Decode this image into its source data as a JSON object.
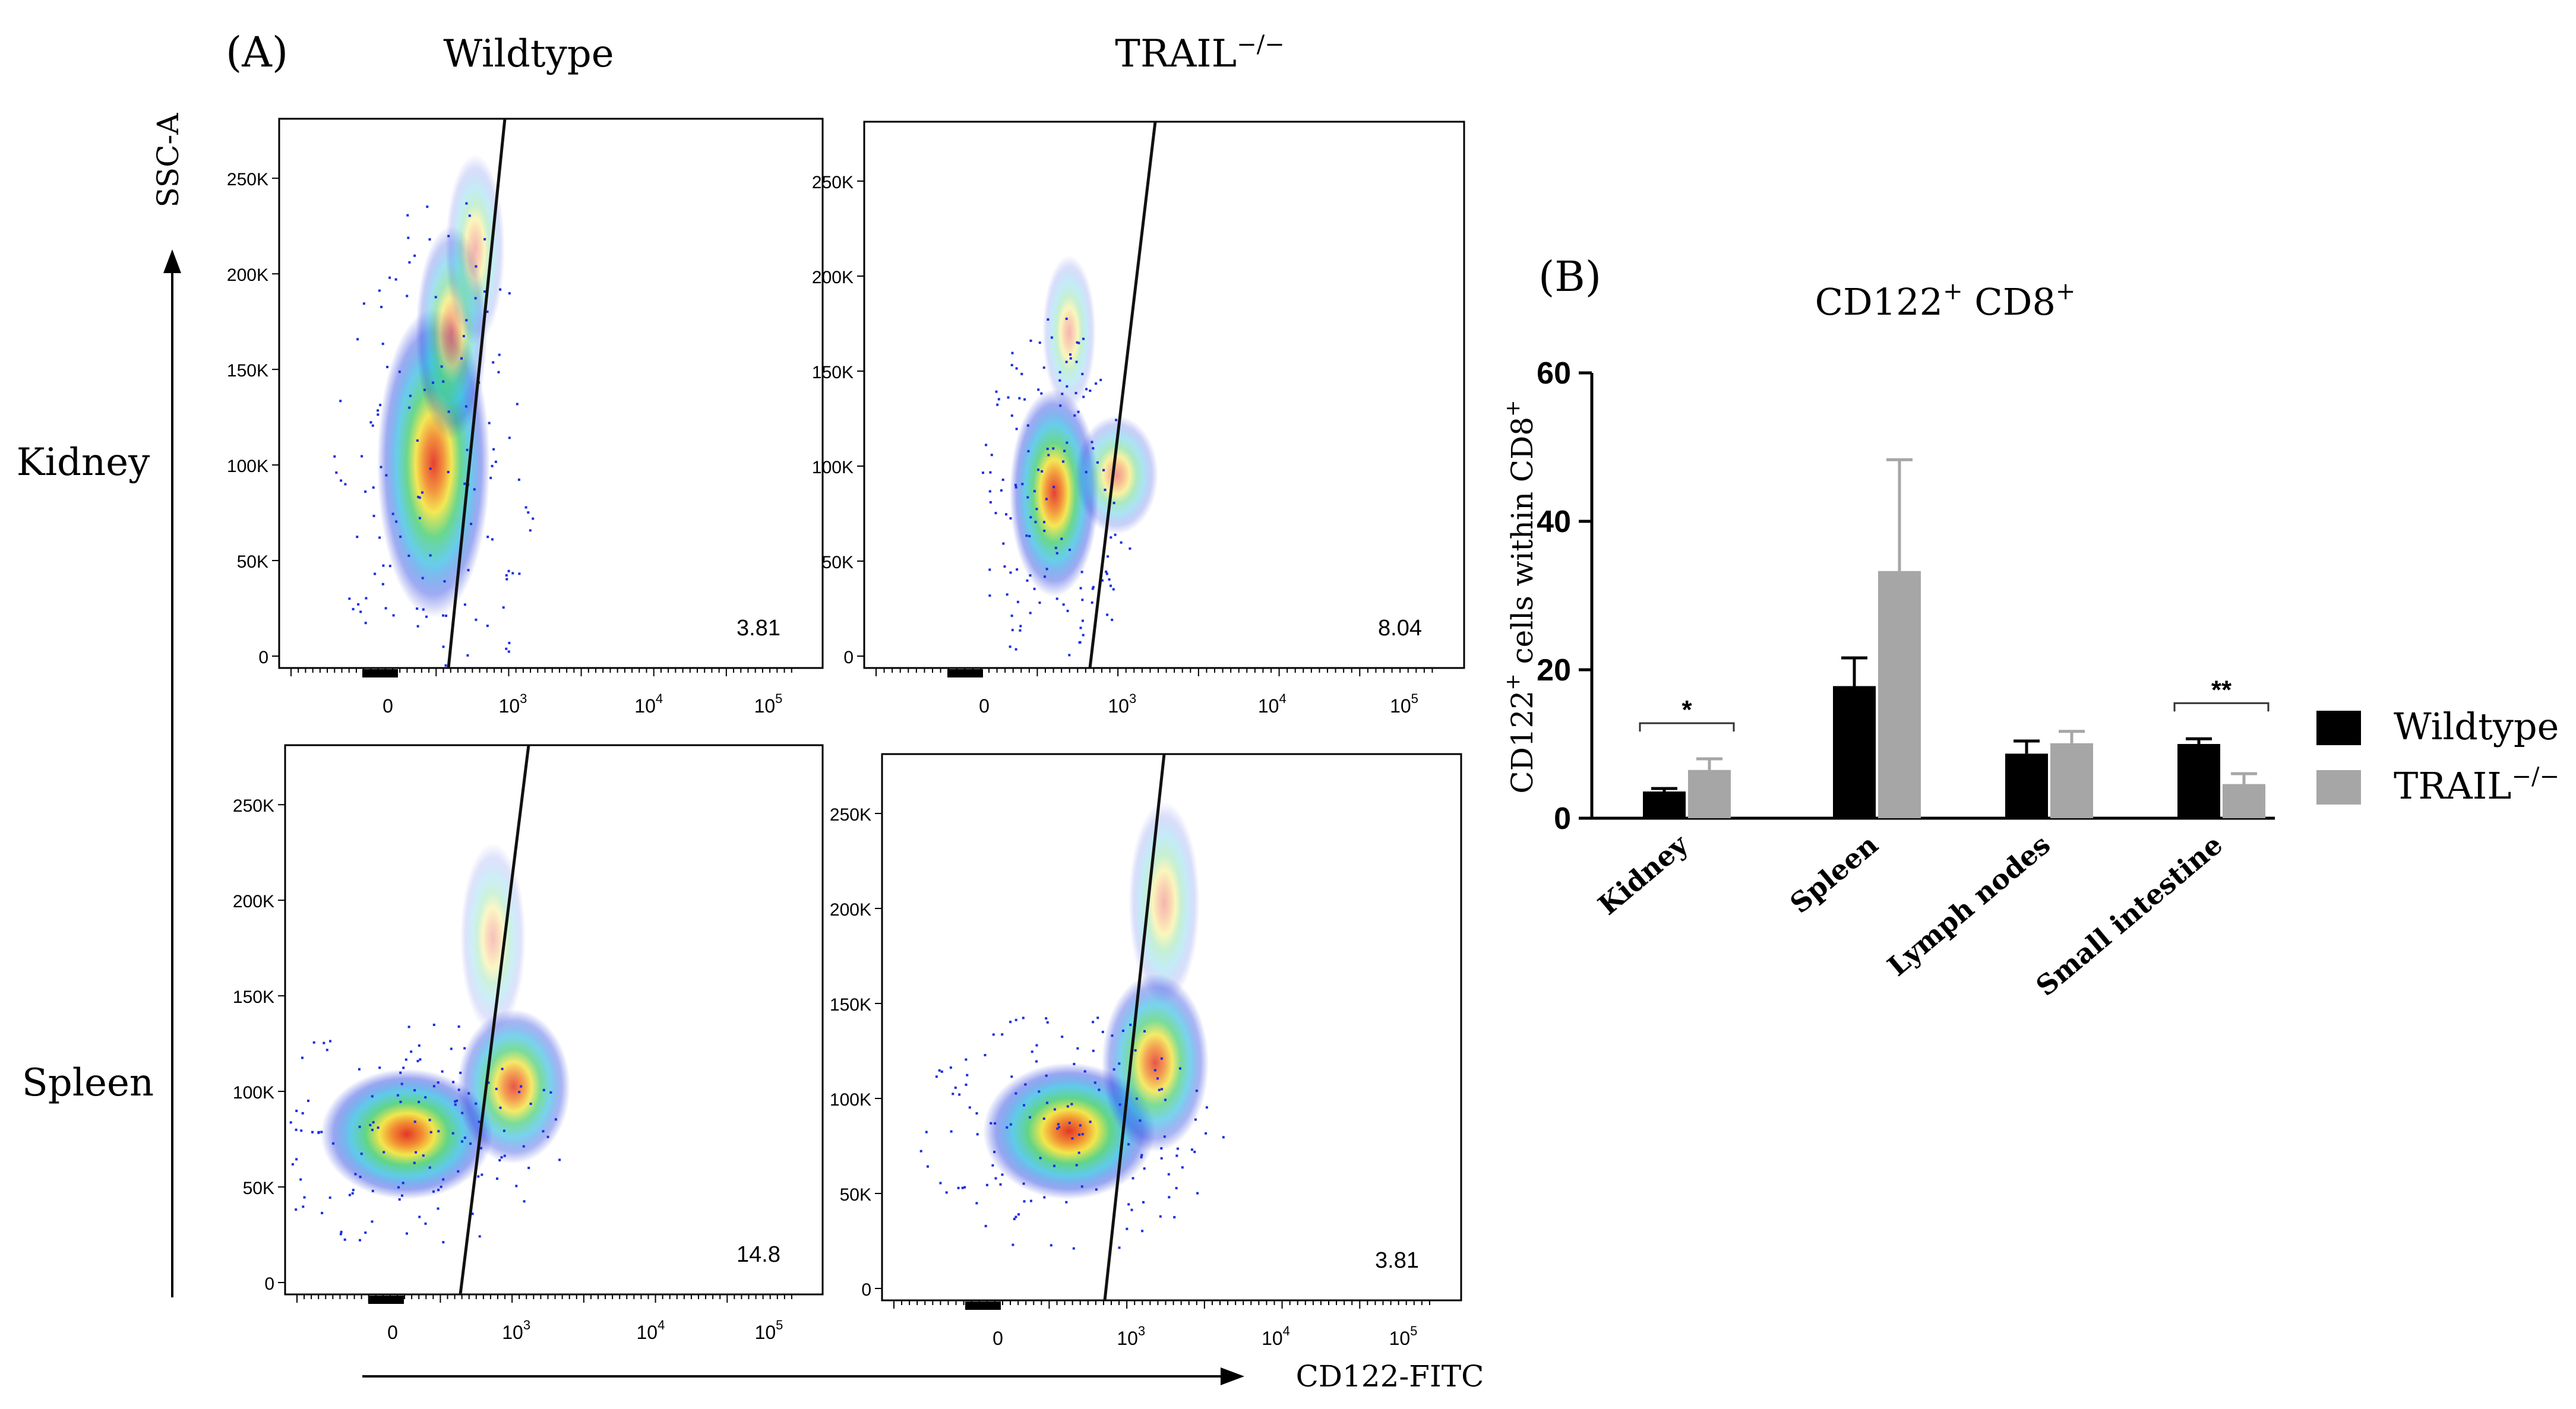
{
  "panel_a": {
    "label": "(A)",
    "col_titles": [
      "Wildtype",
      "TRAIL"
    ],
    "trail_sup": "−/−",
    "row_titles": [
      "Kidney",
      "Spleen"
    ],
    "y_axis_label": "SSC-A",
    "x_axis_label": "CD122-FITC",
    "y_ticks": [
      "0",
      "50K",
      "100K",
      "150K",
      "200K",
      "250K"
    ],
    "x_ticks": [
      {
        "base": "0",
        "exp": ""
      },
      {
        "base": "10",
        "exp": "3"
      },
      {
        "base": "10",
        "exp": "4"
      },
      {
        "base": "10",
        "exp": "5"
      }
    ],
    "plots": [
      {
        "row": "Kidney",
        "col": "Wildtype",
        "gate_percent": "3.81"
      },
      {
        "row": "Kidney",
        "col": "TRAIL−/−",
        "gate_percent": "8.04"
      },
      {
        "row": "Spleen",
        "col": "Wildtype",
        "gate_percent": "14.8"
      },
      {
        "row": "Spleen",
        "col": "TRAIL−/−",
        "gate_percent": "3.81"
      }
    ]
  },
  "panel_b": {
    "label": "(B)",
    "title_part1": "CD122",
    "title_part2": " CD8",
    "title_sup": "+",
    "ylabel_part1": "CD122",
    "ylabel_part2": " cells within CD8",
    "ylabel_sup": "+",
    "significance": [
      "*",
      "**"
    ],
    "colors": {
      "Wildtype": "#000000",
      "TRAIL−/−": "#a6a6a6"
    }
  },
  "chart_data": {
    "type": "bar",
    "categories": [
      "Kidney",
      "Spleen",
      "Lymph nodes",
      "Small intestine"
    ],
    "series": [
      {
        "name": "Wildtype",
        "values": [
          3.6,
          17.8,
          8.7,
          10.0
        ],
        "errors": [
          0.4,
          3.8,
          1.7,
          0.7
        ]
      },
      {
        "name": "TRAIL−/−",
        "values": [
          6.5,
          33.3,
          10.1,
          4.6
        ],
        "errors": [
          1.5,
          15.0,
          1.6,
          1.4
        ]
      }
    ],
    "title": "CD122+ CD8+",
    "xlabel": "",
    "ylabel": "CD122+ cells within CD8+",
    "ylim": [
      0,
      60
    ],
    "yticks": [
      0,
      20,
      40,
      60
    ],
    "legend": [
      "Wildtype",
      "TRAIL−/−"
    ],
    "legend_position": "right",
    "significance": [
      {
        "category": "Kidney",
        "label": "*"
      },
      {
        "category": "Small intestine",
        "label": "**"
      }
    ]
  }
}
